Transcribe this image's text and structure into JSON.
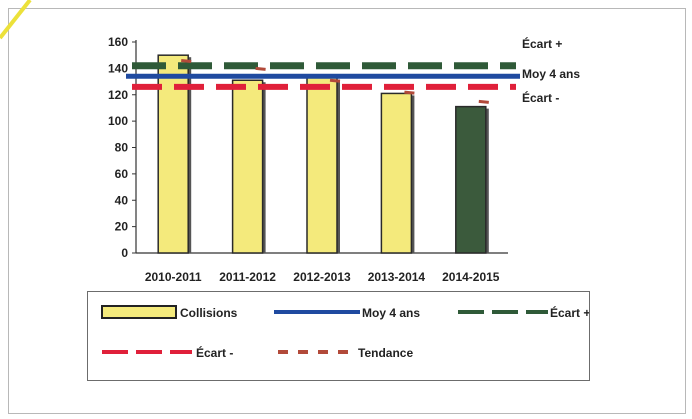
{
  "chart_data": {
    "type": "bar",
    "categories": [
      "2010-2011",
      "2011-2012",
      "2012-2013",
      "2013-2014",
      "2014-2015"
    ],
    "y_ticks": [
      "0",
      "20",
      "40",
      "60",
      "80",
      "100",
      "120",
      "140",
      "160"
    ],
    "ylim": [
      0,
      160
    ],
    "grid": false,
    "series": [
      {
        "name": "Collisions",
        "kind": "bar",
        "values": [
          150,
          131,
          133,
          121,
          111
        ],
        "colors": [
          "#f4ea7c",
          "#f4ea7c",
          "#f4ea7c",
          "#f4ea7c",
          "#3b5a3c"
        ]
      },
      {
        "name": "Moy 4 ans",
        "kind": "line",
        "value": 134,
        "color": "#1f4aa0",
        "label": "Moy 4 ans"
      },
      {
        "name": "Écart +",
        "kind": "dashed",
        "value": 142,
        "color": "#2f5a38",
        "label": "Écart +"
      },
      {
        "name": "Écart -",
        "kind": "dashed",
        "value": 126,
        "color": "#e0203a",
        "label": "Écart -"
      },
      {
        "name": "Tendance",
        "kind": "dotted",
        "values": [
          146,
          140,
          131,
          122,
          115
        ],
        "color": "#b24a3a"
      }
    ],
    "legend": {
      "placement": "bottom",
      "items": [
        "Collisions",
        "Moy 4 ans",
        "Écart +",
        "Écart -",
        "Tendance"
      ]
    }
  }
}
